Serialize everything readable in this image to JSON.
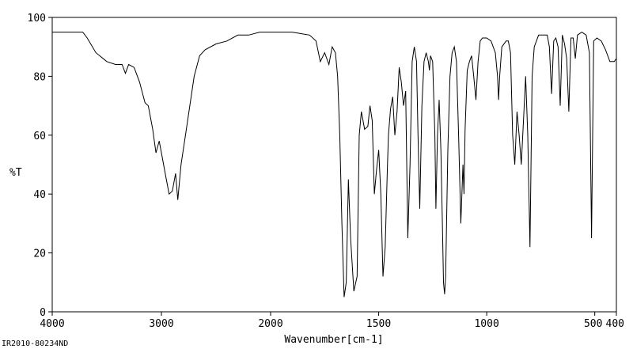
{
  "chart_data": {
    "type": "line",
    "title": "",
    "xlabel": "Wavenumber[cm-1]",
    "ylabel": "%T",
    "xlim": [
      4000,
      400
    ],
    "ylim": [
      0,
      100
    ],
    "x_reversed": true,
    "xticks": [
      4000,
      3000,
      2000,
      1500,
      1000,
      500,
      400
    ],
    "xtick_labels": [
      "4000",
      "3000",
      "2000",
      "1500",
      "1000",
      "500",
      "400"
    ],
    "yticks": [
      0,
      20,
      40,
      60,
      80,
      100
    ],
    "ytick_labels": [
      "0",
      "20",
      "40",
      "60",
      "80",
      "100"
    ],
    "grid": false,
    "series": [
      {
        "points": [
          [
            4000,
            95
          ],
          [
            3720,
            95
          ],
          [
            3680,
            93
          ],
          [
            3600,
            88
          ],
          [
            3500,
            85
          ],
          [
            3420,
            84
          ],
          [
            3360,
            84
          ],
          [
            3330,
            81
          ],
          [
            3300,
            84
          ],
          [
            3250,
            83
          ],
          [
            3200,
            78
          ],
          [
            3150,
            71
          ],
          [
            3120,
            70
          ],
          [
            3080,
            62
          ],
          [
            3050,
            54
          ],
          [
            3020,
            58
          ],
          [
            2990,
            52
          ],
          [
            2960,
            46
          ],
          [
            2930,
            40
          ],
          [
            2900,
            41
          ],
          [
            2870,
            47
          ],
          [
            2850,
            38
          ],
          [
            2820,
            50
          ],
          [
            2780,
            60
          ],
          [
            2740,
            70
          ],
          [
            2700,
            80
          ],
          [
            2650,
            87
          ],
          [
            2600,
            89
          ],
          [
            2500,
            91
          ],
          [
            2400,
            92
          ],
          [
            2300,
            94
          ],
          [
            2200,
            94
          ],
          [
            2100,
            95
          ],
          [
            2000,
            95
          ],
          [
            1900,
            95
          ],
          [
            1820,
            94
          ],
          [
            1790,
            92
          ],
          [
            1770,
            85
          ],
          [
            1750,
            88
          ],
          [
            1730,
            84
          ],
          [
            1715,
            90
          ],
          [
            1700,
            88
          ],
          [
            1690,
            80
          ],
          [
            1680,
            60
          ],
          [
            1670,
            30
          ],
          [
            1660,
            5
          ],
          [
            1650,
            10
          ],
          [
            1640,
            45
          ],
          [
            1630,
            25
          ],
          [
            1615,
            7
          ],
          [
            1600,
            12
          ],
          [
            1590,
            60
          ],
          [
            1580,
            68
          ],
          [
            1565,
            62
          ],
          [
            1550,
            63
          ],
          [
            1540,
            70
          ],
          [
            1530,
            65
          ],
          [
            1520,
            40
          ],
          [
            1510,
            48
          ],
          [
            1500,
            55
          ],
          [
            1490,
            40
          ],
          [
            1480,
            12
          ],
          [
            1470,
            22
          ],
          [
            1460,
            48
          ],
          [
            1455,
            60
          ],
          [
            1445,
            69
          ],
          [
            1435,
            73
          ],
          [
            1425,
            60
          ],
          [
            1415,
            68
          ],
          [
            1405,
            83
          ],
          [
            1395,
            78
          ],
          [
            1385,
            70
          ],
          [
            1375,
            75
          ],
          [
            1365,
            25
          ],
          [
            1355,
            50
          ],
          [
            1345,
            85
          ],
          [
            1335,
            90
          ],
          [
            1325,
            85
          ],
          [
            1318,
            60
          ],
          [
            1310,
            35
          ],
          [
            1300,
            70
          ],
          [
            1290,
            85
          ],
          [
            1280,
            88
          ],
          [
            1270,
            85
          ],
          [
            1265,
            82
          ],
          [
            1260,
            87
          ],
          [
            1250,
            85
          ],
          [
            1240,
            60
          ],
          [
            1235,
            35
          ],
          [
            1228,
            60
          ],
          [
            1220,
            72
          ],
          [
            1212,
            55
          ],
          [
            1205,
            30
          ],
          [
            1200,
            10
          ],
          [
            1195,
            6
          ],
          [
            1190,
            12
          ],
          [
            1180,
            55
          ],
          [
            1170,
            80
          ],
          [
            1160,
            88
          ],
          [
            1150,
            90
          ],
          [
            1140,
            85
          ],
          [
            1130,
            60
          ],
          [
            1120,
            30
          ],
          [
            1110,
            50
          ],
          [
            1105,
            40
          ],
          [
            1100,
            62
          ],
          [
            1090,
            82
          ],
          [
            1080,
            85
          ],
          [
            1070,
            87
          ],
          [
            1060,
            80
          ],
          [
            1050,
            72
          ],
          [
            1040,
            85
          ],
          [
            1030,
            92
          ],
          [
            1020,
            93
          ],
          [
            1000,
            93
          ],
          [
            980,
            92
          ],
          [
            960,
            88
          ],
          [
            950,
            80
          ],
          [
            945,
            72
          ],
          [
            940,
            80
          ],
          [
            930,
            90
          ],
          [
            910,
            92
          ],
          [
            900,
            92
          ],
          [
            890,
            88
          ],
          [
            880,
            60
          ],
          [
            870,
            50
          ],
          [
            860,
            68
          ],
          [
            850,
            60
          ],
          [
            840,
            50
          ],
          [
            830,
            65
          ],
          [
            820,
            80
          ],
          [
            810,
            60
          ],
          [
            800,
            22
          ],
          [
            790,
            80
          ],
          [
            780,
            90
          ],
          [
            760,
            94
          ],
          [
            740,
            94
          ],
          [
            720,
            94
          ],
          [
            710,
            90
          ],
          [
            700,
            74
          ],
          [
            690,
            92
          ],
          [
            680,
            93
          ],
          [
            670,
            90
          ],
          [
            660,
            70
          ],
          [
            650,
            94
          ],
          [
            640,
            91
          ],
          [
            630,
            86
          ],
          [
            620,
            68
          ],
          [
            610,
            93
          ],
          [
            600,
            93
          ],
          [
            590,
            86
          ],
          [
            580,
            94
          ],
          [
            560,
            95
          ],
          [
            540,
            94
          ],
          [
            525,
            88
          ],
          [
            515,
            25
          ],
          [
            505,
            92
          ],
          [
            490,
            93
          ],
          [
            470,
            92
          ],
          [
            450,
            89
          ],
          [
            430,
            85
          ],
          [
            410,
            85
          ],
          [
            400,
            86
          ]
        ]
      }
    ]
  },
  "footer": {
    "sample_id": "IR2010-80234ND"
  }
}
